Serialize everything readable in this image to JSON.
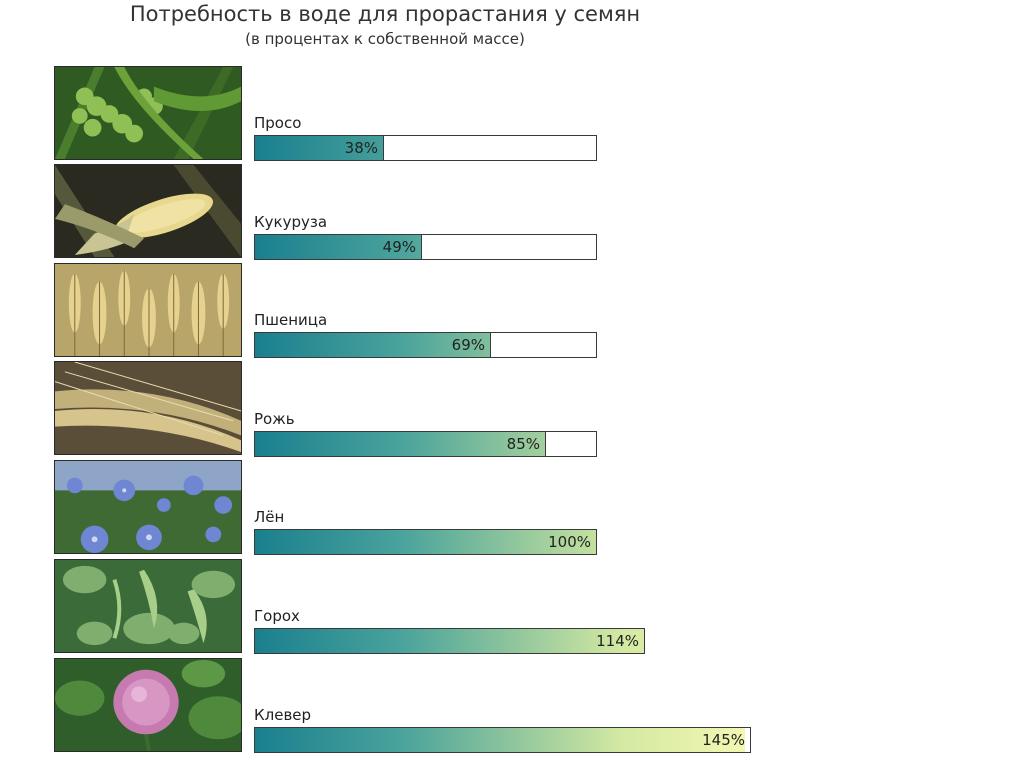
{
  "chart_data": {
    "type": "bar",
    "orientation": "horizontal",
    "title": "Потребность в воде для прорастания у семян",
    "subtitle": "(в процентах к собственной массе)",
    "categories": [
      "Просо",
      "Кукуруза",
      "Пшеница",
      "Рожь",
      "Лён",
      "Горох",
      "Клевер"
    ],
    "values": [
      38,
      49,
      69,
      85,
      100,
      114,
      145
    ],
    "value_labels": [
      "38%",
      "49%",
      "69%",
      "85%",
      "100%",
      "114%",
      "145%"
    ],
    "xlim": [
      0,
      145
    ],
    "grid": false
  },
  "colors": {
    "bar_start": "#1a7f8e",
    "bar_mid": "#96c99d",
    "bar_end": "#f3f7b2",
    "frame": "#3a3a3a"
  },
  "photos": [
    "millet-photo",
    "corn-photo",
    "wheat-photo",
    "rye-photo",
    "flax-photo",
    "pea-photo",
    "clover-photo"
  ]
}
